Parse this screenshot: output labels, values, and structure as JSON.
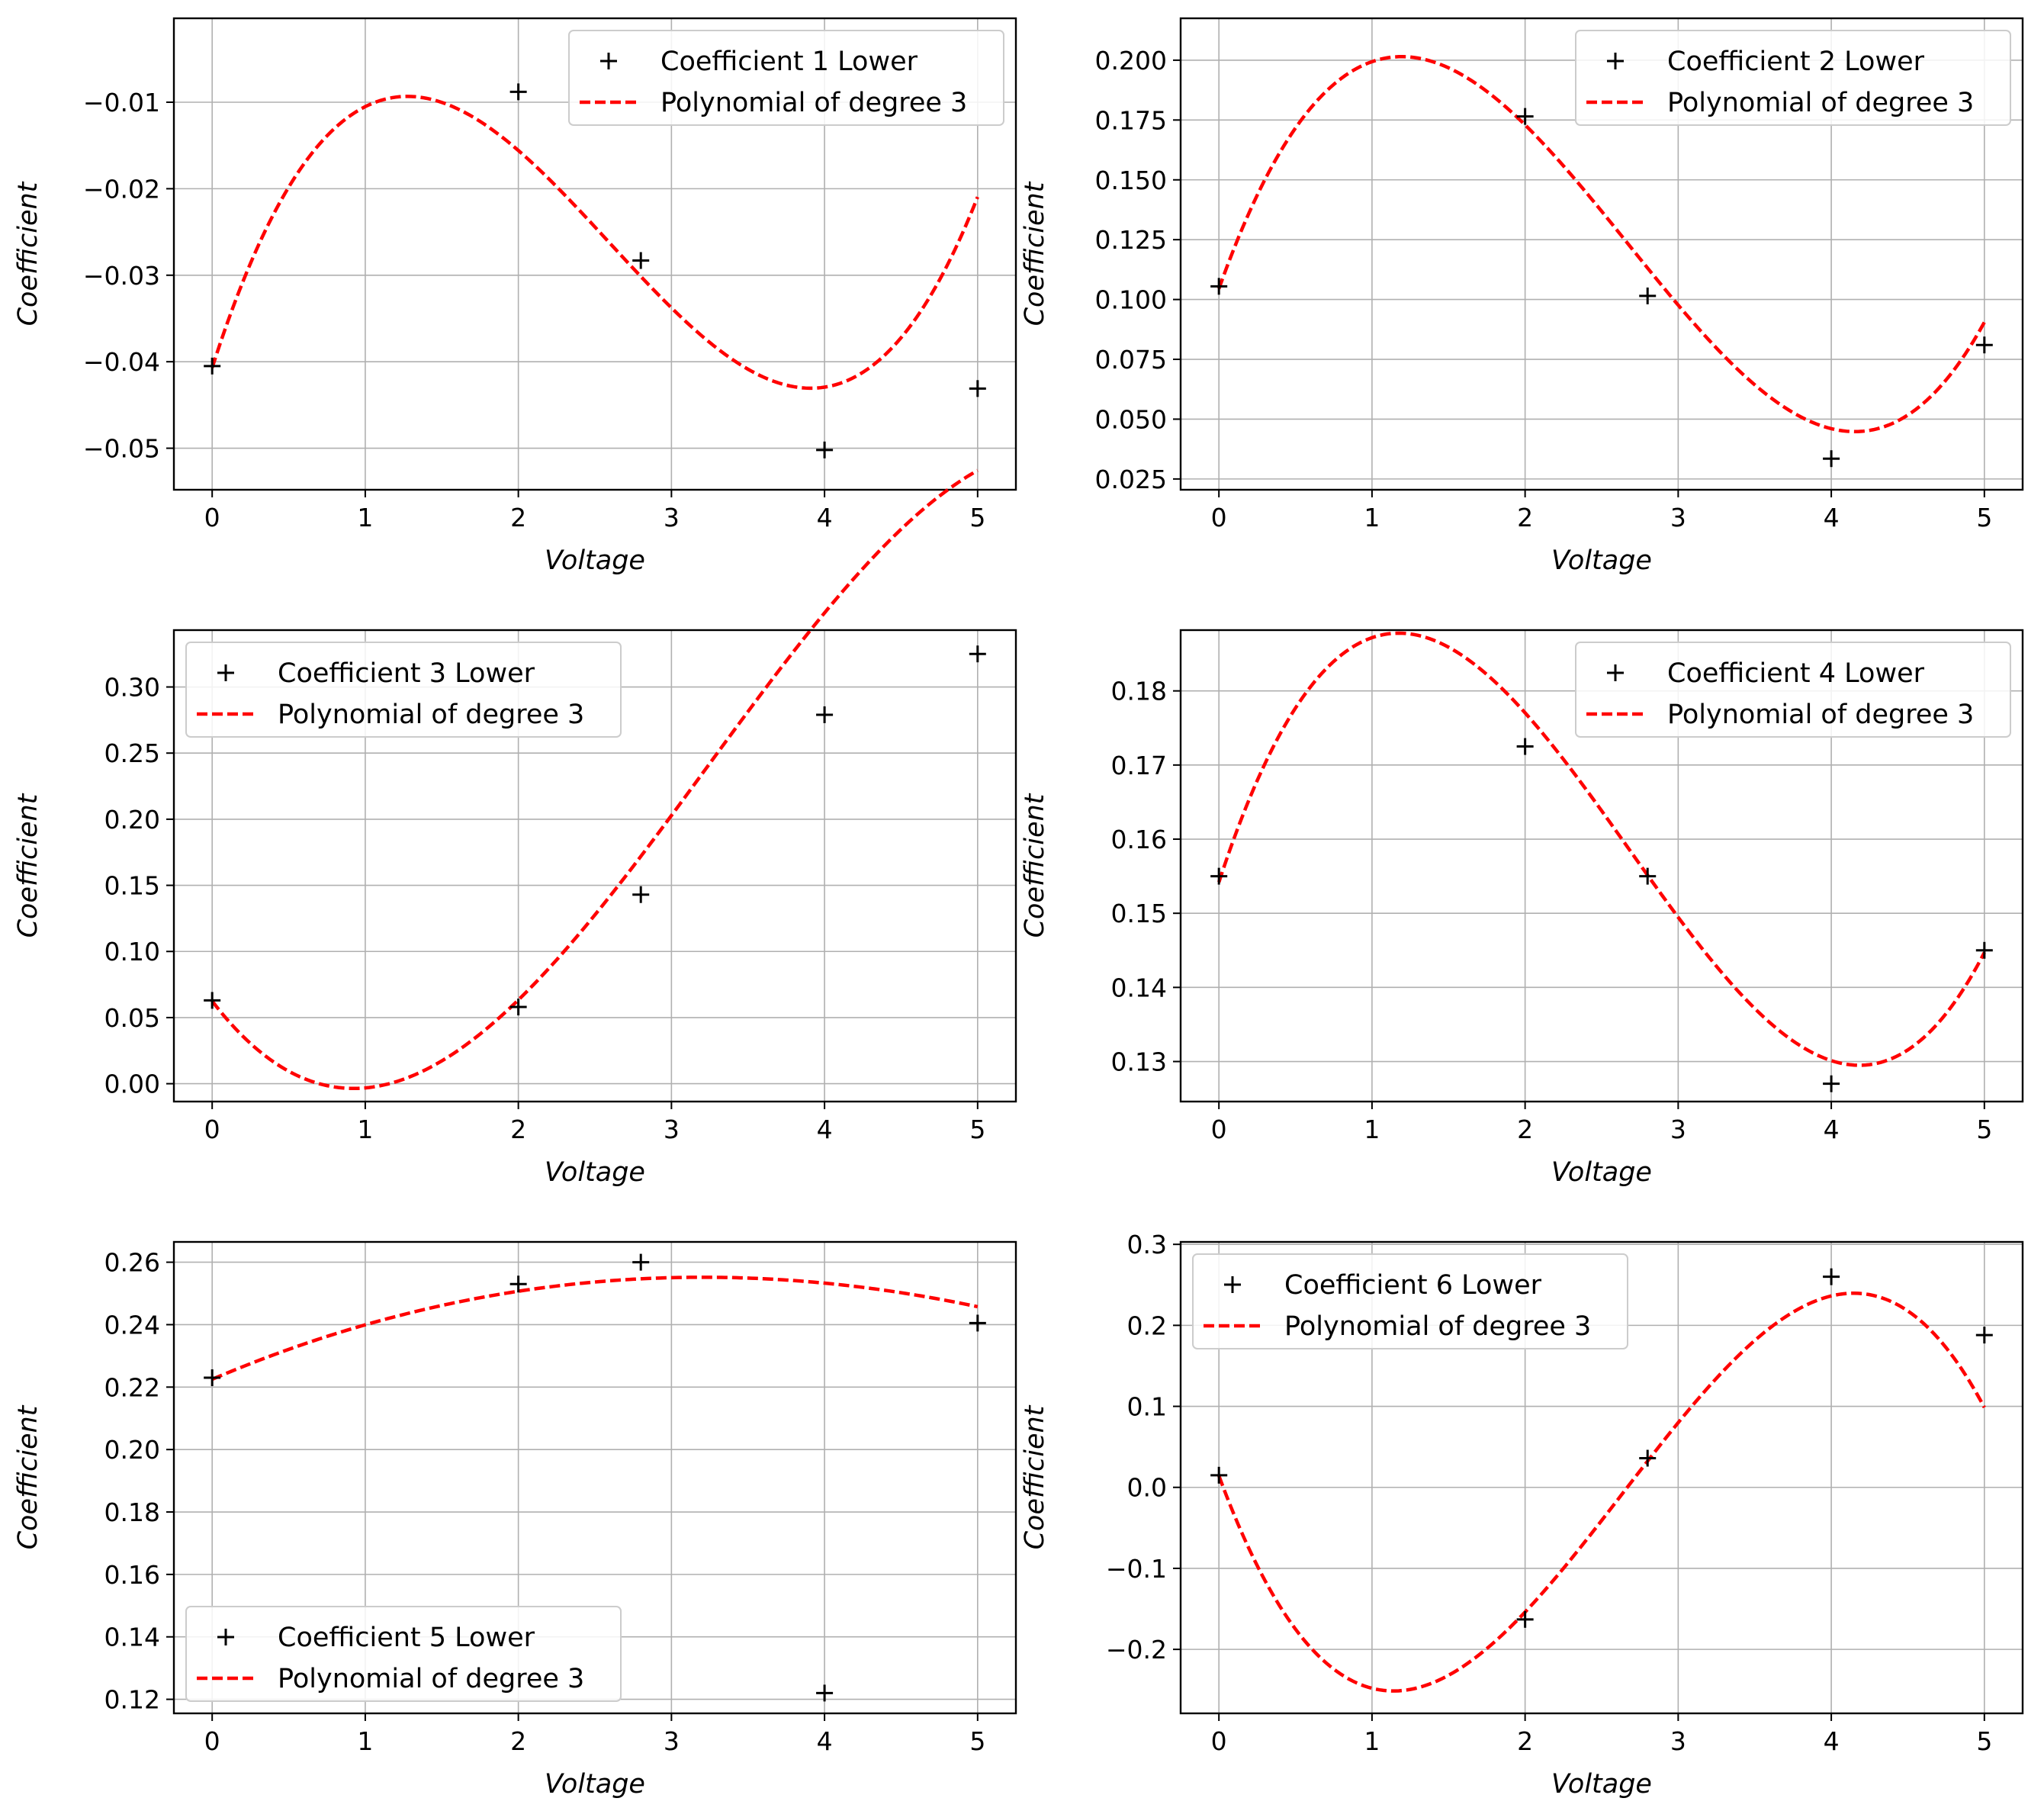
{
  "colors": {
    "data_marker": "#000000",
    "fit_line": "#ff0000",
    "grid": "#b0b0b0"
  },
  "chart_data": [
    {
      "type": "line",
      "xlabel": "Voltage",
      "ylabel": "Coefficient",
      "xlim": [
        -0.25,
        5.25
      ],
      "ylim": [
        -0.0548,
        -0.0003
      ],
      "xticks": [
        0,
        1,
        2,
        3,
        4,
        5
      ],
      "xtick_labels": [
        "0",
        "1",
        "2",
        "3",
        "4",
        "5"
      ],
      "yticks": [
        -0.05,
        -0.04,
        -0.03,
        -0.02,
        -0.01
      ],
      "ytick_labels": [
        "−0.05",
        "−0.04",
        "−0.03",
        "−0.02",
        "−0.01"
      ],
      "legend_position": "upper right",
      "series": [
        {
          "name": "Coefficient 1 Lower",
          "style": "markers",
          "x": [
            0,
            2,
            2.8,
            4,
            5
          ],
          "y": [
            -0.0405,
            -0.0088,
            -0.0283,
            -0.0502,
            -0.0431
          ]
        },
        {
          "name": "Polynomial of degree 3",
          "style": "dashed",
          "coefficients": [
            -0.0407,
            0.0552,
            -0.0287,
            0.00369
          ],
          "x_range": [
            0,
            5
          ]
        }
      ]
    },
    {
      "type": "line",
      "xlabel": "Voltage",
      "ylabel": "Coefficient",
      "xlim": [
        -0.25,
        5.25
      ],
      "ylim": [
        0.0205,
        0.2175
      ],
      "xticks": [
        0,
        1,
        2,
        3,
        4,
        5
      ],
      "xtick_labels": [
        "0",
        "1",
        "2",
        "3",
        "4",
        "5"
      ],
      "yticks": [
        0.025,
        0.05,
        0.075,
        0.1,
        0.125,
        0.15,
        0.175,
        0.2
      ],
      "ytick_labels": [
        "0.025",
        "0.050",
        "0.075",
        "0.100",
        "0.125",
        "0.150",
        "0.175",
        "0.200"
      ],
      "legend_position": "upper right",
      "series": [
        {
          "name": "Coefficient 2 Lower",
          "style": "markers",
          "x": [
            0,
            2,
            2.8,
            4,
            5
          ],
          "y": [
            0.1055,
            0.1765,
            0.1015,
            0.0335,
            0.081
          ]
        },
        {
          "name": "Polynomial of degree 3",
          "style": "dashed",
          "coefficients": [
            0.1045,
            0.1797,
            -0.0969,
            0.01208
          ],
          "x_range": [
            0,
            5
          ]
        }
      ]
    },
    {
      "type": "line",
      "xlabel": "Voltage",
      "ylabel": "Coefficient",
      "xlim": [
        -0.25,
        5.25
      ],
      "ylim": [
        -0.0135,
        0.343
      ],
      "xticks": [
        0,
        1,
        2,
        3,
        4,
        5
      ],
      "xtick_labels": [
        "0",
        "1",
        "2",
        "3",
        "4",
        "5"
      ],
      "yticks": [
        0,
        0.05,
        0.1,
        0.15,
        0.2,
        0.25,
        0.3
      ],
      "ytick_labels": [
        "0.00",
        "0.05",
        "0.10",
        "0.15",
        "0.20",
        "0.25",
        "0.30"
      ],
      "legend_position": "upper left",
      "series": [
        {
          "name": "Coefficient 3 Lower",
          "style": "markers",
          "x": [
            0,
            2,
            2.8,
            4,
            5
          ],
          "y": [
            0.063,
            0.058,
            0.143,
            0.279,
            0.325
          ]
        },
        {
          "name": "Polynomial of degree 3",
          "style": "dashed",
          "coefficients": [
            0.0625,
            -0.1515,
            0.0957,
            -0.00987
          ],
          "x_range": [
            0,
            5
          ]
        }
      ]
    },
    {
      "type": "line",
      "xlabel": "Voltage",
      "ylabel": "Coefficient",
      "xlim": [
        -0.25,
        5.25
      ],
      "ylim": [
        0.1246,
        0.1882
      ],
      "xticks": [
        0,
        1,
        2,
        3,
        4,
        5
      ],
      "xtick_labels": [
        "0",
        "1",
        "2",
        "3",
        "4",
        "5"
      ],
      "yticks": [
        0.13,
        0.14,
        0.15,
        0.16,
        0.17,
        0.18
      ],
      "ytick_labels": [
        "0.13",
        "0.14",
        "0.15",
        "0.16",
        "0.17",
        "0.18"
      ],
      "legend_position": "upper right",
      "series": [
        {
          "name": "Coefficient 4 Lower",
          "style": "markers",
          "x": [
            0,
            2,
            2.8,
            4,
            5
          ],
          "y": [
            0.155,
            0.1725,
            0.155,
            0.127,
            0.145
          ]
        },
        {
          "name": "Polynomial of degree 3",
          "style": "dashed",
          "coefficients": [
            0.1542,
            0.0631,
            -0.0344,
            0.00428
          ],
          "x_range": [
            0,
            5
          ]
        }
      ]
    },
    {
      "type": "line",
      "xlabel": "Voltage",
      "ylabel": "Coefficient",
      "xlim": [
        -0.25,
        5.25
      ],
      "ylim": [
        0.1155,
        0.2665
      ],
      "xticks": [
        0,
        1,
        2,
        3,
        4,
        5
      ],
      "xtick_labels": [
        "0",
        "1",
        "2",
        "3",
        "4",
        "5"
      ],
      "yticks": [
        0.12,
        0.14,
        0.16,
        0.18,
        0.2,
        0.22,
        0.24,
        0.26
      ],
      "ytick_labels": [
        "0.12",
        "0.14",
        "0.16",
        "0.18",
        "0.20",
        "0.22",
        "0.24",
        "0.26"
      ],
      "legend_position": "lower left",
      "series": [
        {
          "name": "Coefficient 5 Lower",
          "style": "markers",
          "x": [
            0,
            2,
            2.8,
            4,
            5
          ],
          "y": [
            0.223,
            0.253,
            0.26,
            0.122,
            0.2405
          ]
        },
        {
          "name": "Polynomial of degree 3",
          "style": "dashed",
          "coefficients": [
            0.2225,
            0.0209,
            -0.0035,
            5e-05
          ],
          "x_range": [
            0,
            5
          ]
        }
      ]
    },
    {
      "type": "line",
      "xlabel": "Voltage",
      "ylabel": "Coefficient",
      "xlim": [
        -0.25,
        5.25
      ],
      "ylim": [
        -0.279,
        0.303
      ],
      "xticks": [
        0,
        1,
        2,
        3,
        4,
        5
      ],
      "xtick_labels": [
        "0",
        "1",
        "2",
        "3",
        "4",
        "5"
      ],
      "yticks": [
        -0.2,
        -0.1,
        0,
        0.1,
        0.2,
        0.3
      ],
      "ytick_labels": [
        "−0.2",
        "−0.1",
        "0.0",
        "0.1",
        "0.2",
        "0.3"
      ],
      "legend_position": "upper left",
      "series": [
        {
          "name": "Coefficient 6 Lower",
          "style": "markers",
          "x": [
            0,
            2,
            2.8,
            4,
            5
          ],
          "y": [
            0.015,
            -0.163,
            0.036,
            0.26,
            0.188
          ]
        },
        {
          "name": "Polynomial of degree 3",
          "style": "dashed",
          "coefficients": [
            0.0143,
            -0.5129,
            0.2867,
            -0.03615
          ],
          "x_range": [
            0,
            5
          ]
        }
      ]
    }
  ]
}
